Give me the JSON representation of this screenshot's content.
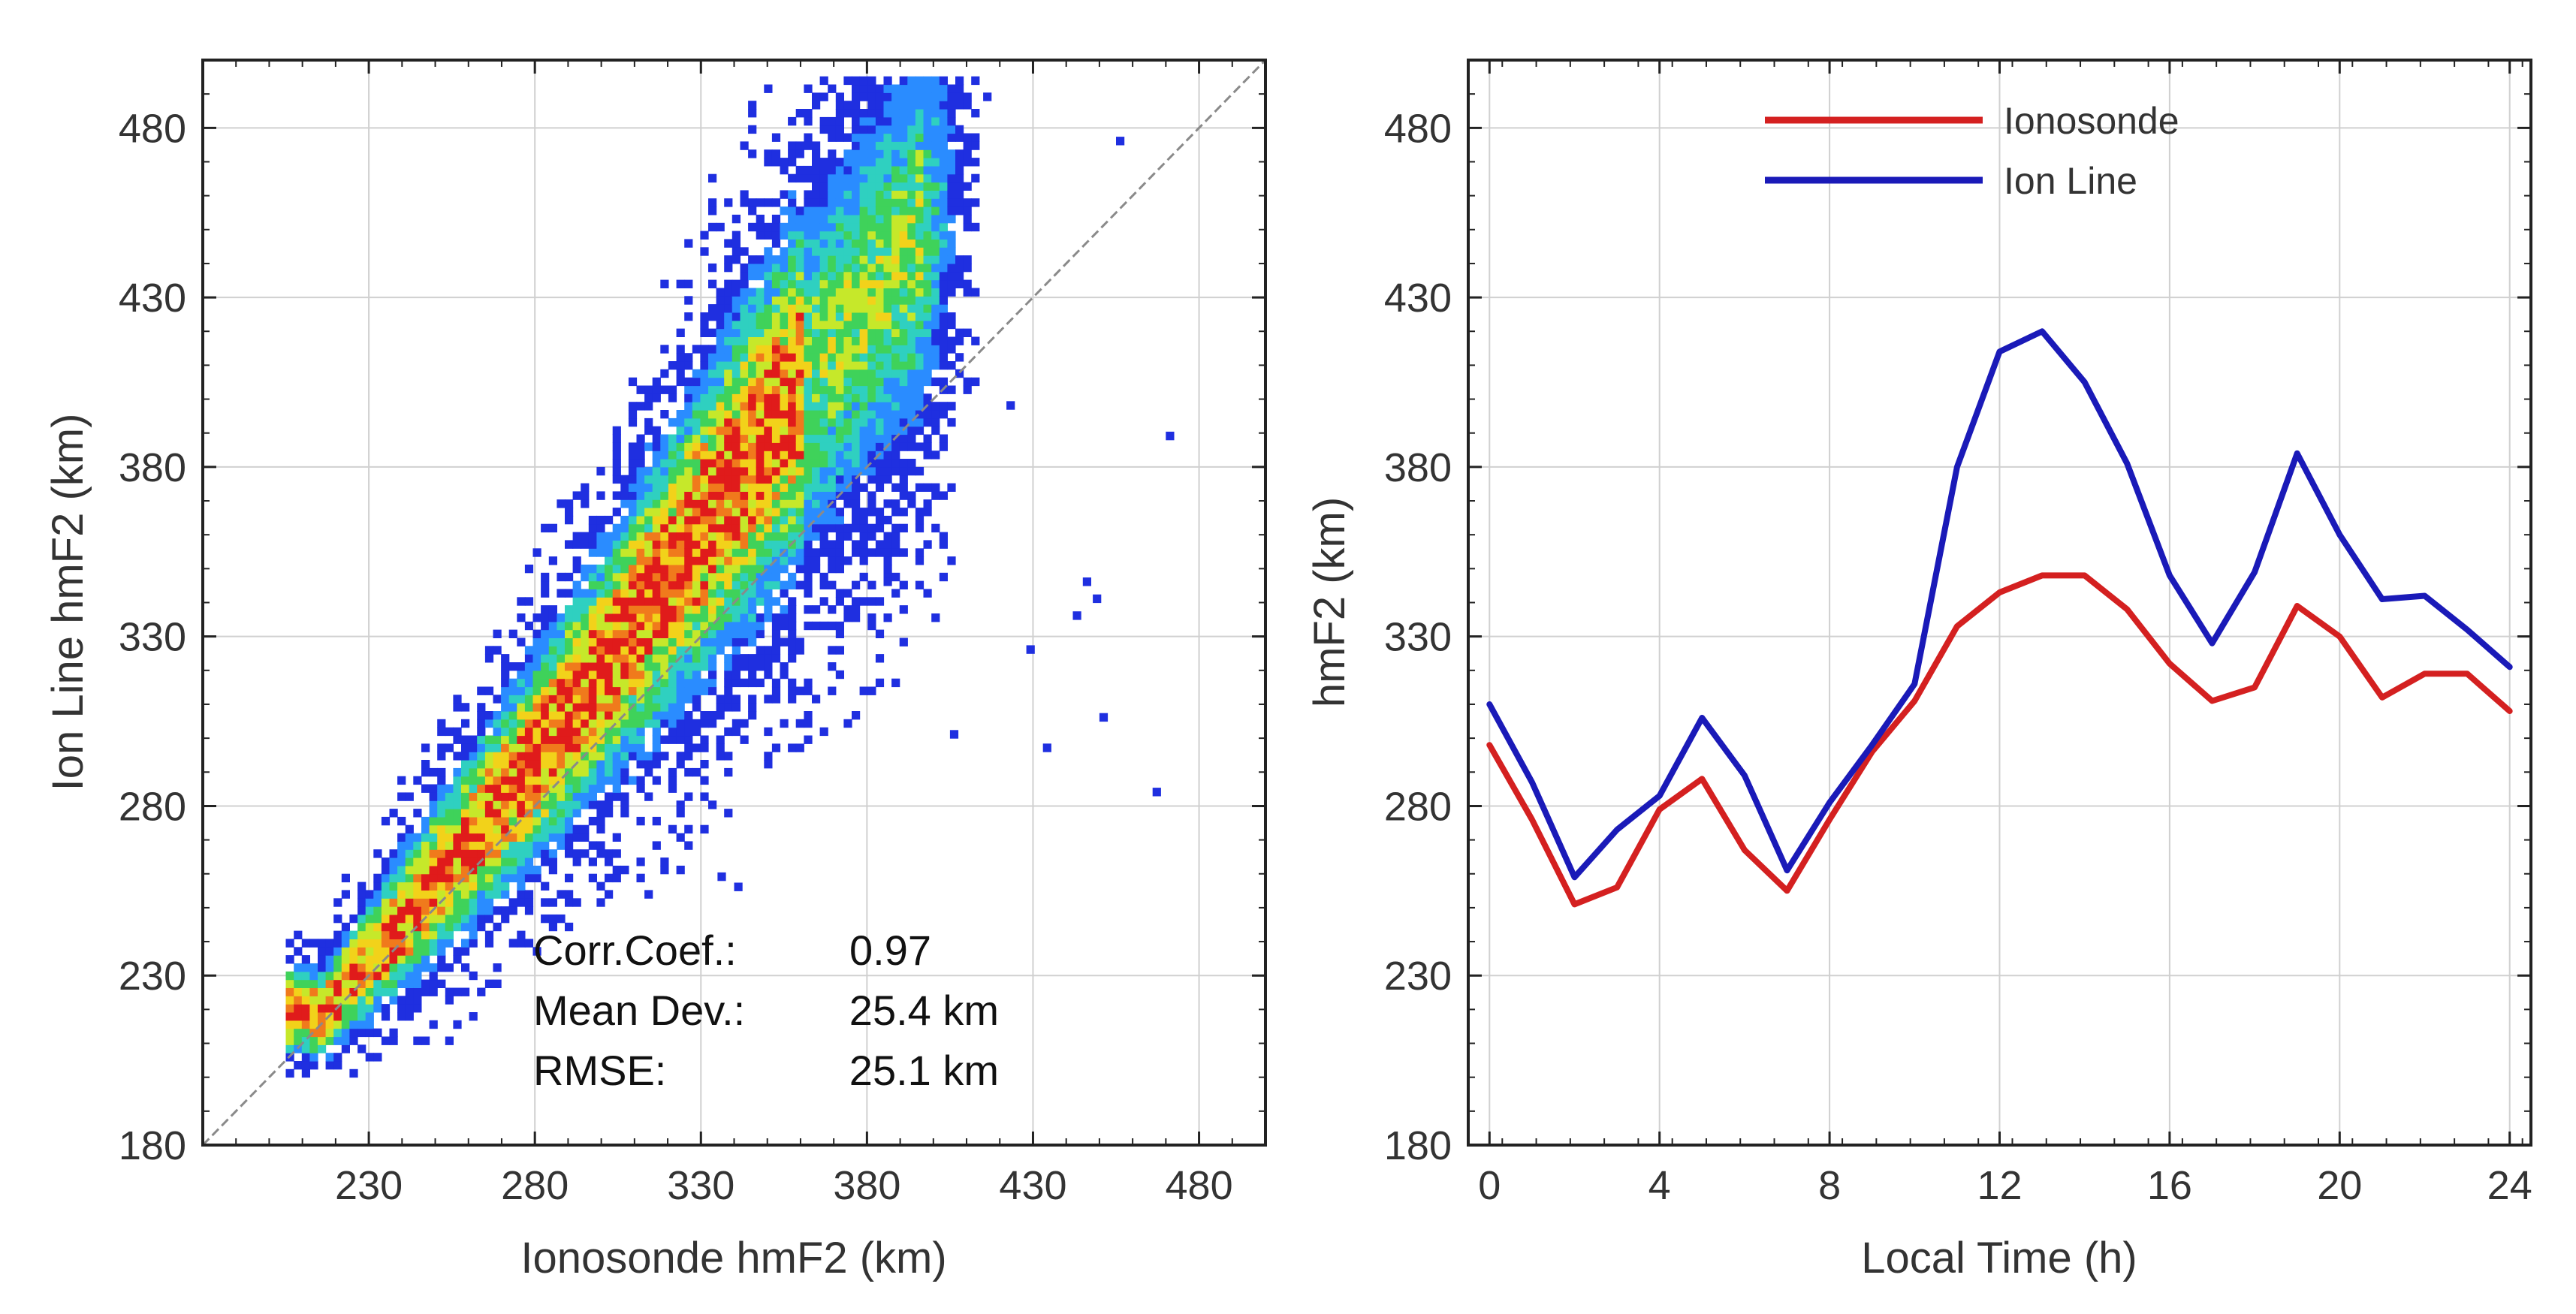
{
  "chart_data": [
    {
      "type": "heatmap",
      "title": "",
      "xlabel": "Ionosonde hmF2 (km)",
      "ylabel": "Ion Line hmF2 (km)",
      "xlim": [
        180,
        500
      ],
      "ylim": [
        180,
        500
      ],
      "xticks": [
        230,
        280,
        330,
        380,
        430,
        480
      ],
      "yticks": [
        180,
        230,
        280,
        330,
        380,
        430,
        480
      ],
      "grid": true,
      "reference_line": "y = x (dashed gray)",
      "colormap": [
        "#1f2fe0",
        "#2a8cff",
        "#2fd0c0",
        "#3fd25a",
        "#c6e82a",
        "#f2d21a",
        "#f07a1c",
        "#e01b1b"
      ],
      "density_ridge": {
        "x": [
          215,
          240,
          270,
          300,
          330,
          360,
          390,
          410
        ],
        "y": [
          218,
          246,
          282,
          320,
          362,
          405,
          440,
          470
        ]
      },
      "ridge_spread": {
        "x": [
          215,
          250,
          300,
          350,
          400
        ],
        "y": [
          10,
          18,
          28,
          40,
          45
        ]
      },
      "outliers": [
        [
          445,
          345
        ],
        [
          448,
          340
        ],
        [
          442,
          335
        ],
        [
          422,
          397
        ],
        [
          470,
          388
        ],
        [
          450,
          305
        ],
        [
          433,
          296
        ],
        [
          428,
          325
        ],
        [
          466,
          283
        ],
        [
          405,
          300
        ],
        [
          385,
          345
        ],
        [
          340,
          255
        ],
        [
          335,
          258
        ],
        [
          455,
          475
        ],
        [
          415,
          488
        ]
      ],
      "annotations": [
        {
          "label": "Corr.Coef.:",
          "value": "0.97"
        },
        {
          "label": "Mean Dev.:",
          "value": "25.4 km"
        },
        {
          "label": "RMSE:",
          "value": "25.1 km"
        }
      ]
    },
    {
      "type": "line",
      "title": "",
      "xlabel": "Local Time (h)",
      "ylabel": "hmF2 (km)",
      "xlim": [
        -0.5,
        24.5
      ],
      "ylim": [
        180,
        500
      ],
      "xticks": [
        0,
        4,
        8,
        12,
        16,
        20,
        24
      ],
      "yticks": [
        180,
        230,
        280,
        330,
        380,
        430,
        480
      ],
      "grid": true,
      "legend_position": "top-center",
      "x": [
        0,
        1,
        2,
        3,
        4,
        5,
        6,
        7,
        8,
        9,
        10,
        11,
        12,
        13,
        14,
        15,
        16,
        17,
        18,
        19,
        20,
        21,
        22,
        23,
        24
      ],
      "series": [
        {
          "name": "Ionosonde",
          "color": "#d42020",
          "values": [
            298,
            276,
            251,
            256,
            279,
            288,
            267,
            255,
            276,
            296,
            311,
            333,
            343,
            348,
            348,
            338,
            322,
            311,
            315,
            339,
            330,
            312,
            319,
            319,
            308
          ]
        },
        {
          "name": "Ion Line",
          "color": "#1a1ab8",
          "values": [
            310,
            287,
            259,
            273,
            283,
            306,
            289,
            261,
            281,
            298,
            316,
            380,
            414,
            420,
            405,
            381,
            348,
            328,
            349,
            384,
            360,
            341,
            342,
            332,
            321
          ]
        }
      ]
    }
  ]
}
